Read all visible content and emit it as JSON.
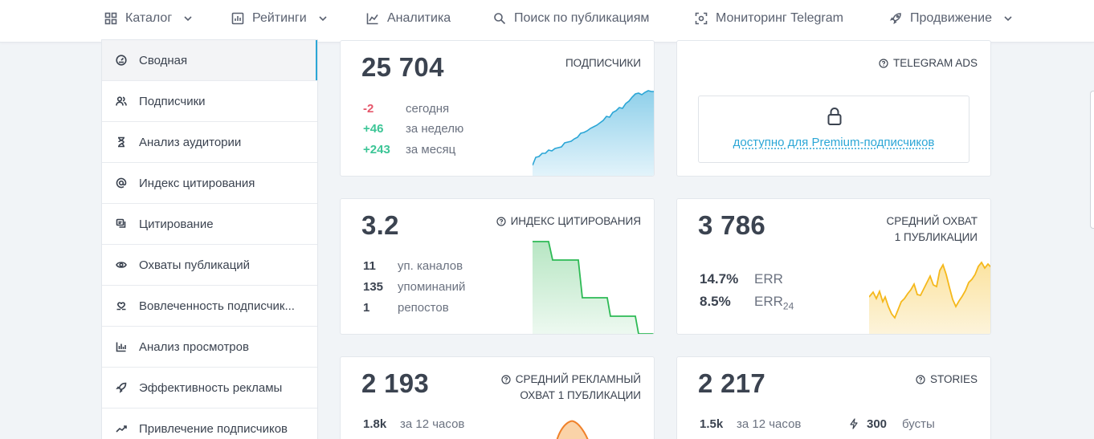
{
  "nav": {
    "items": [
      {
        "label": "Каталог",
        "icon": "grid-icon",
        "dropdown": true
      },
      {
        "label": "Рейтинги",
        "icon": "ratings-icon",
        "dropdown": true
      },
      {
        "label": "Аналитика",
        "icon": "analytics-icon",
        "dropdown": false
      },
      {
        "label": "Поиск по публикациям",
        "icon": "search-icon",
        "dropdown": false
      },
      {
        "label": "Мониторинг Telegram",
        "icon": "monitor-icon",
        "dropdown": false
      },
      {
        "label": "Продвижение",
        "icon": "rocket-icon",
        "dropdown": true
      }
    ]
  },
  "sidebar": {
    "items": [
      {
        "label": "Сводная",
        "icon": "dashboard-icon",
        "active": true
      },
      {
        "label": "Подписчики",
        "icon": "users-icon"
      },
      {
        "label": "Анализ аудитории",
        "icon": "hourglass-icon"
      },
      {
        "label": "Индекс цитирования",
        "icon": "at-icon"
      },
      {
        "label": "Цитирование",
        "icon": "quote-icon"
      },
      {
        "label": "Охваты публикаций",
        "icon": "eye-icon"
      },
      {
        "label": "Вовлеченность подписчик...",
        "icon": "heart-hand-icon"
      },
      {
        "label": "Анализ просмотров",
        "icon": "bar-chart-icon"
      },
      {
        "label": "Эффективность рекламы",
        "icon": "rocket-icon"
      },
      {
        "label": "Привлечение подписчиков",
        "icon": "trend-icon"
      }
    ]
  },
  "subscribers": {
    "value": "25 704",
    "title": "ПОДПИСЧИКИ",
    "rows": [
      {
        "value": "-2",
        "label": "сегодня",
        "tone": "neg"
      },
      {
        "value": "+46",
        "label": "за неделю",
        "tone": "pos"
      },
      {
        "value": "+243",
        "label": "за месяц",
        "tone": "pos"
      }
    ]
  },
  "ads": {
    "title": "TELEGRAM ADS",
    "locked_text": "доступно для Premium-подписчиков"
  },
  "citation": {
    "value": "3.2",
    "title": "ИНДЕКС ЦИТИРОВАНИЯ",
    "rows": [
      {
        "value": "11",
        "label": "уп. каналов"
      },
      {
        "value": "135",
        "label": "упоминаний"
      },
      {
        "value": "1",
        "label": "репостов"
      }
    ]
  },
  "reach": {
    "value": "3 786",
    "title_line1": "СРЕДНИЙ ОХВАТ",
    "title_line2": "1 ПУБЛИКАЦИИ",
    "rows": [
      {
        "value": "14.7%",
        "label": "ERR"
      },
      {
        "value": "8.5%",
        "label": "ERR",
        "sub": "24"
      }
    ]
  },
  "ad_reach": {
    "value": "2 193",
    "title_line1": "СРЕДНИЙ РЕКЛАМНЫЙ",
    "title_line2": "ОХВАТ 1 ПУБЛИКАЦИИ",
    "row": {
      "value": "1.8k",
      "label": "за 12 часов"
    }
  },
  "stories": {
    "value": "2 217",
    "title": "STORIES",
    "row": {
      "value": "1.5k",
      "label": "за 12 часов"
    },
    "boosts": {
      "value": "300",
      "label": "бусты"
    }
  },
  "colors": {
    "accent": "#2ba6d6",
    "negative": "#e5566a",
    "positive": "#3cc596",
    "subscribers_line": "#2ba6d6",
    "citation_line": "#2dba55",
    "reach_line": "#f5b81b",
    "ad_reach_line": "#f0812a"
  }
}
